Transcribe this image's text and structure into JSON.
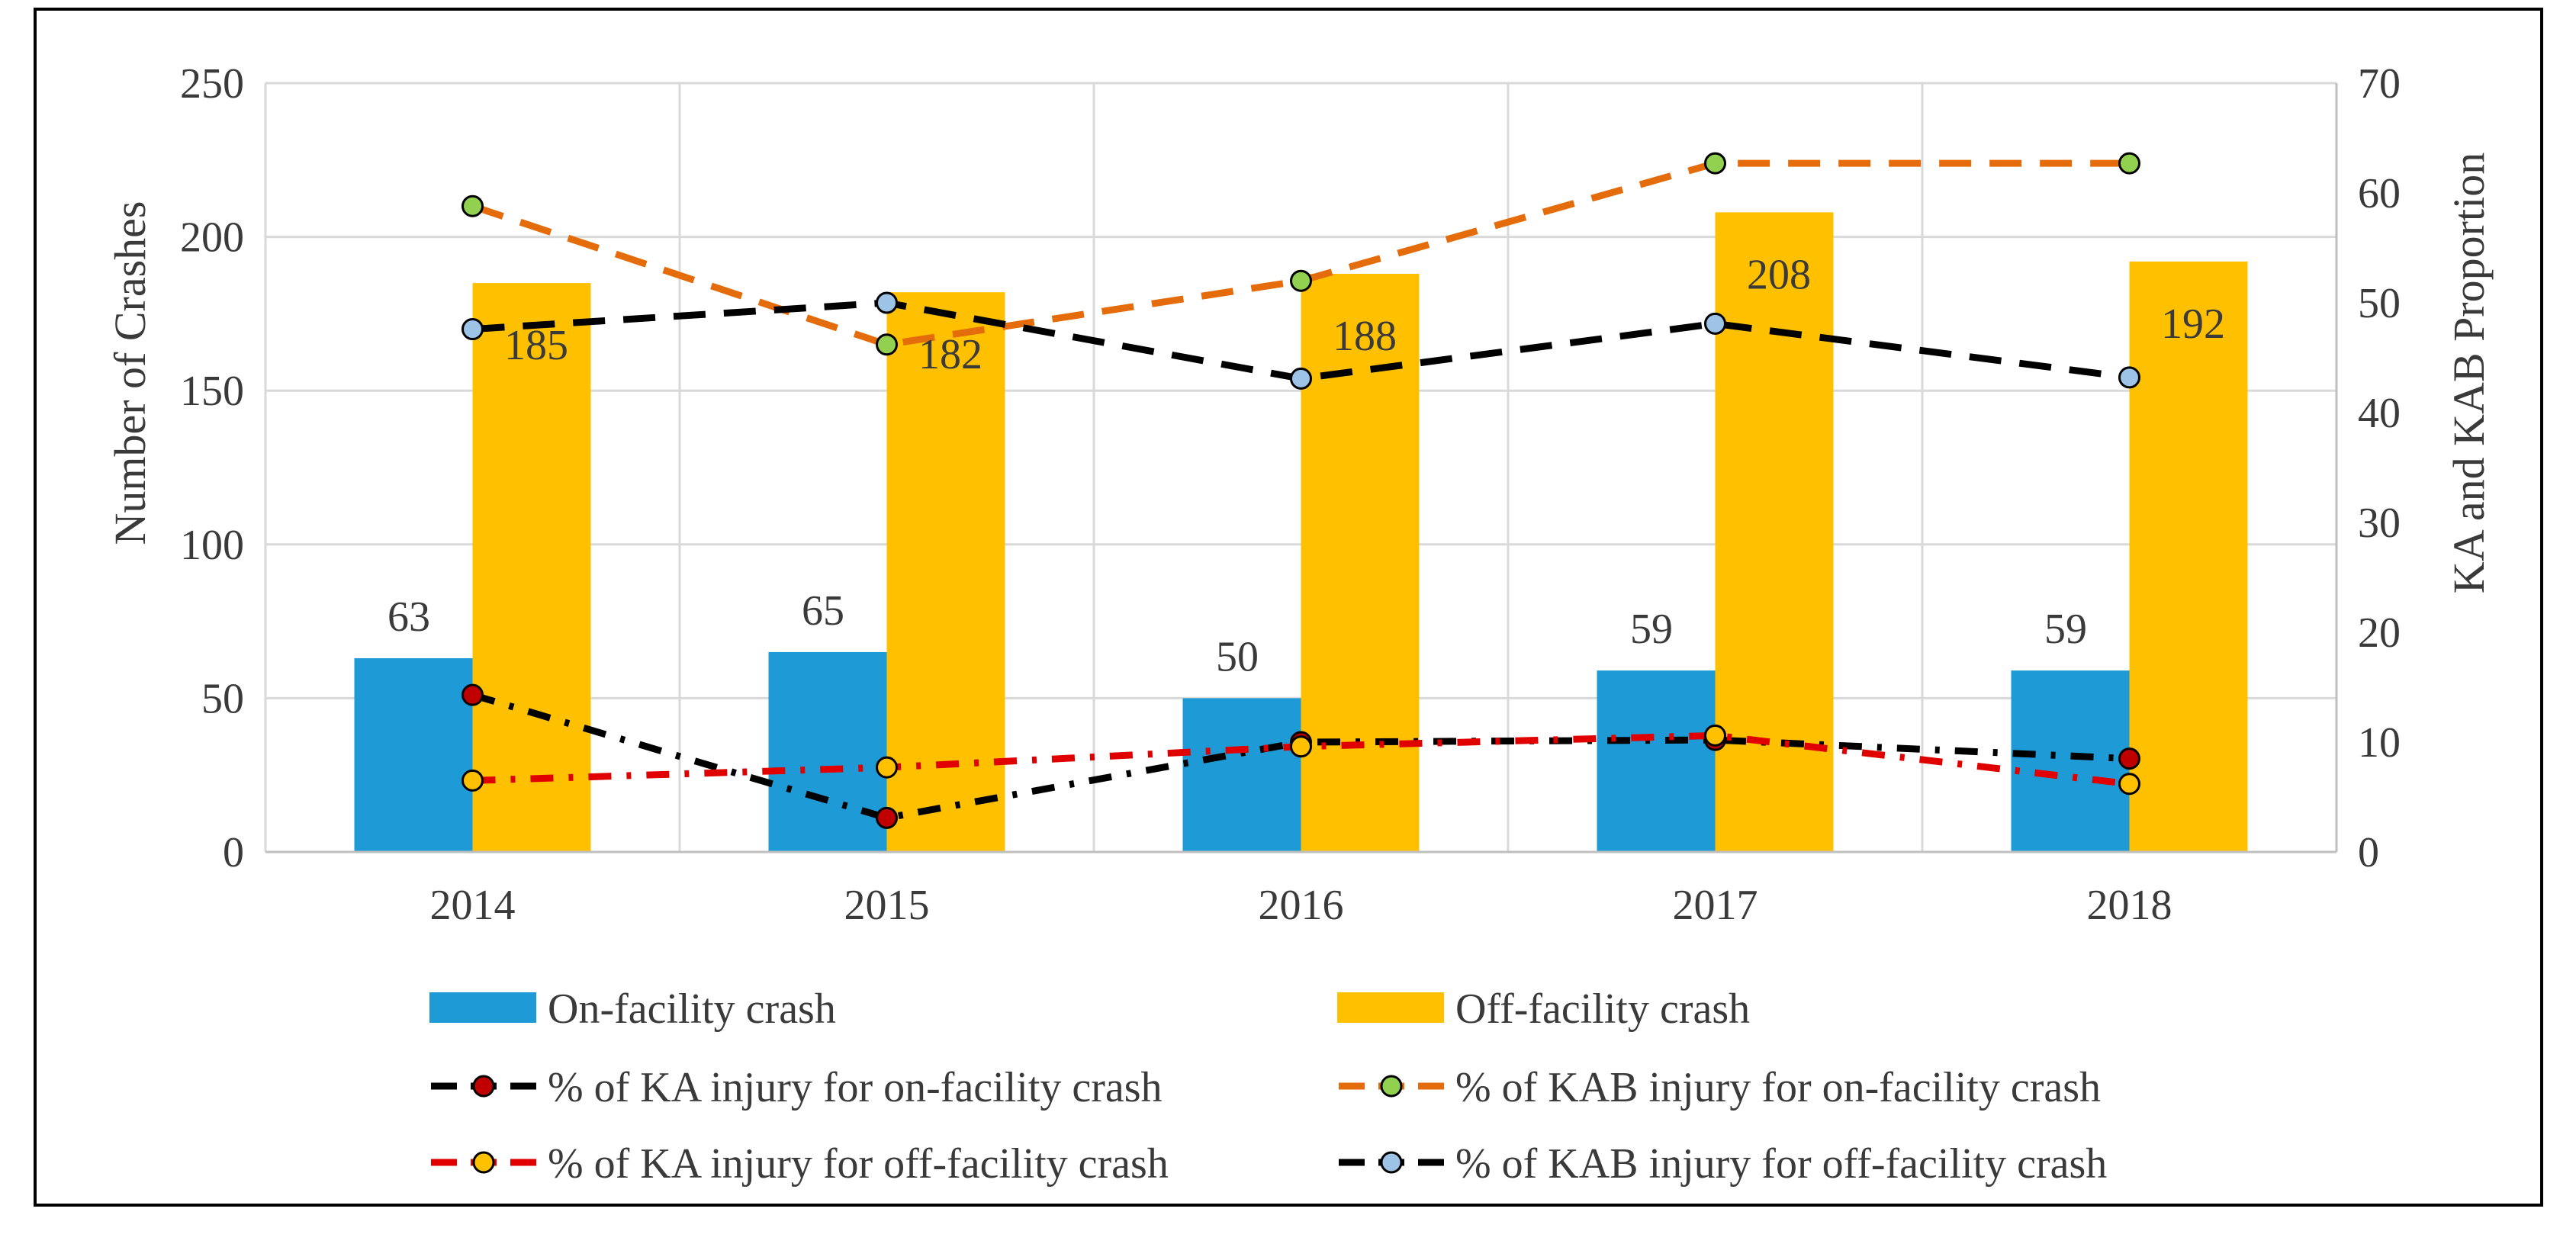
{
  "chart_data": {
    "type": "bar",
    "title": "",
    "categories": [
      "2014",
      "2015",
      "2016",
      "2017",
      "2018"
    ],
    "y_left": {
      "label": "Number of Crashes",
      "range": [
        0,
        250
      ],
      "ticks": [
        "0",
        "50",
        "100",
        "150",
        "200",
        "250"
      ]
    },
    "y_right": {
      "label": "KA and KAB Proportion",
      "range": [
        0,
        70
      ],
      "ticks": [
        "0",
        "10",
        "20",
        "30",
        "40",
        "50",
        "60",
        "70"
      ]
    },
    "grid": true,
    "legend_position": "bottom",
    "bars": [
      {
        "name": "On-facility crash",
        "color": "#1E9BD7",
        "values": [
          63,
          65,
          50,
          59,
          59
        ],
        "labels": [
          "63",
          "65",
          "50",
          "59",
          "59"
        ]
      },
      {
        "name": "Off-facility crash",
        "color": "#FFC000",
        "values": [
          185,
          182,
          188,
          208,
          192
        ],
        "labels": [
          "185",
          "182",
          "188",
          "208",
          "192"
        ]
      }
    ],
    "lines": [
      {
        "name": "% of KA injury for on-facility crash",
        "axis": "right",
        "line_color": "#000000",
        "marker_color": "#C00000",
        "dash": "dashdot",
        "values": [
          14.3,
          3.1,
          10.0,
          10.2,
          8.5
        ]
      },
      {
        "name": "% of KAB injury for on-facility crash",
        "axis": "right",
        "line_color": "#E46C0A",
        "marker_color": "#92D050",
        "dash": "dash",
        "values": [
          58.8,
          46.2,
          52.0,
          62.7,
          62.7
        ]
      },
      {
        "name": "% of KA injury for off-facility crash",
        "axis": "right",
        "line_color": "#E00000",
        "marker_color": "#FFC000",
        "dash": "dashdot",
        "values": [
          6.5,
          7.7,
          9.6,
          10.6,
          6.2
        ]
      },
      {
        "name": "% of KAB injury for off-facility crash",
        "axis": "right",
        "line_color": "#000000",
        "marker_color": "#9DC3E6",
        "dash": "dash",
        "values": [
          47.6,
          50.0,
          43.1,
          48.1,
          43.2
        ]
      }
    ]
  }
}
